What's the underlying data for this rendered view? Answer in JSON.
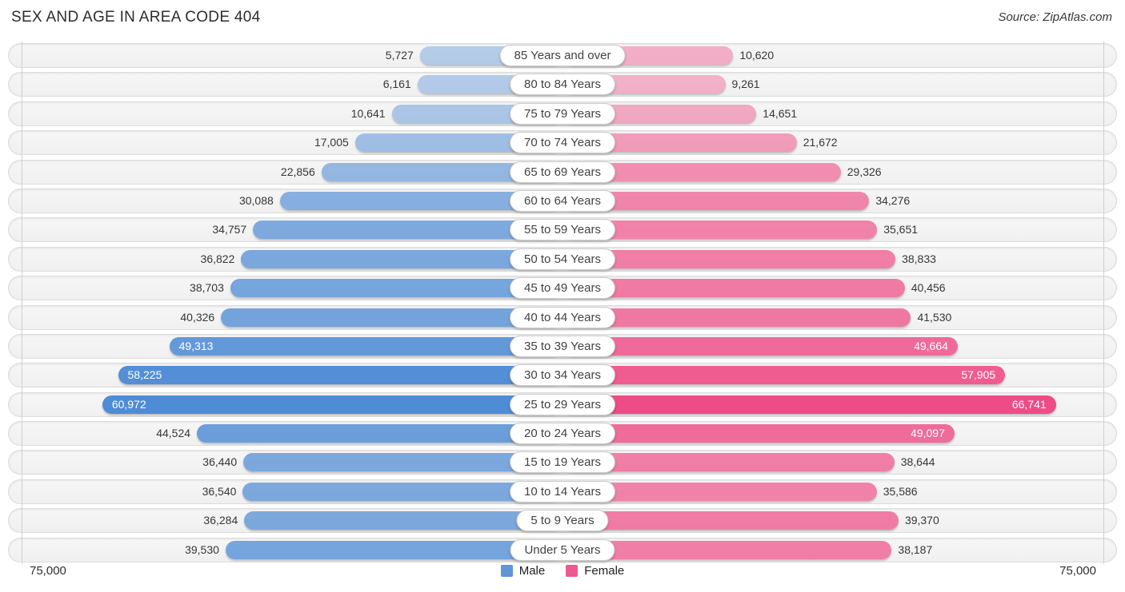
{
  "header": {
    "title": "SEX AND AGE IN AREA CODE 404",
    "source": "Source: ZipAtlas.com"
  },
  "axis": {
    "left_label": "75,000",
    "right_label": "75,000",
    "max_value": 75000
  },
  "legend": {
    "male_label": "Male",
    "female_label": "Female"
  },
  "colors": {
    "male_base": "#4384d3",
    "female_base": "#ee4c86",
    "male_legend": "#6095d8",
    "female_legend": "#ec5a8f"
  },
  "chart_data": {
    "type": "bar",
    "variant": "population_pyramid",
    "title": "SEX AND AGE IN AREA CODE 404",
    "source": "Source: ZipAtlas.com",
    "axis_max": 75000,
    "grid": "off",
    "legend_position": "bottom-center",
    "categories": [
      "85 Years and over",
      "80 to 84 Years",
      "75 to 79 Years",
      "70 to 74 Years",
      "65 to 69 Years",
      "60 to 64 Years",
      "55 to 59 Years",
      "50 to 54 Years",
      "45 to 49 Years",
      "40 to 44 Years",
      "35 to 39 Years",
      "30 to 34 Years",
      "25 to 29 Years",
      "20 to 24 Years",
      "15 to 19 Years",
      "10 to 14 Years",
      "5 to 9 Years",
      "Under 5 Years"
    ],
    "series": [
      {
        "name": "Male",
        "values": [
          5727,
          6161,
          10641,
          17005,
          22856,
          30088,
          34757,
          36822,
          38703,
          40326,
          49313,
          58225,
          60972,
          44524,
          36440,
          36540,
          36284,
          39530
        ]
      },
      {
        "name": "Female",
        "values": [
          10620,
          9261,
          14651,
          21672,
          29326,
          34276,
          35651,
          38833,
          40456,
          41530,
          49664,
          57905,
          66741,
          49097,
          38644,
          35586,
          39370,
          38187
        ]
      }
    ]
  }
}
